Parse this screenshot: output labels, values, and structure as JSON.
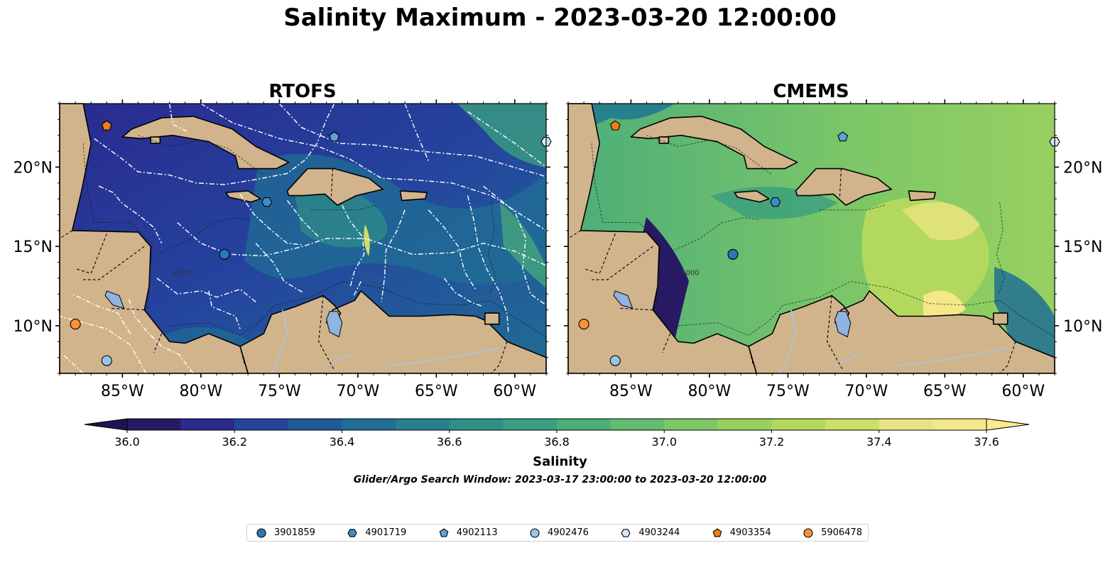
{
  "figure": {
    "title": "Salinity Maximum - 2023-03-20 12:00:00",
    "colorbar_label": "Salinity",
    "search_window": "Glider/Argo Search Window: 2023-03-17 23:00:00 to 2023-03-20 12:00:00"
  },
  "map_extent": {
    "lon": [
      -89,
      -58
    ],
    "lat": [
      7,
      24
    ]
  },
  "panels": [
    {
      "title": "RTOFS",
      "model": "rtofs",
      "eez_boundaries": true
    },
    {
      "title": "CMEMS",
      "model": "cmems",
      "eez_boundaries": false
    }
  ],
  "lon_ticks": [
    {
      "value": -85,
      "label": "85°W"
    },
    {
      "value": -80,
      "label": "80°W"
    },
    {
      "value": -75,
      "label": "75°W"
    },
    {
      "value": -70,
      "label": "70°W"
    },
    {
      "value": -65,
      "label": "65°W"
    },
    {
      "value": -60,
      "label": "60°W"
    }
  ],
  "lat_ticks": [
    {
      "value": 20,
      "label": "20°N"
    },
    {
      "value": 15,
      "label": "15°N"
    },
    {
      "value": 10,
      "label": "10°N"
    }
  ],
  "contour_label": "1000",
  "colorbar": {
    "min": 36.0,
    "max": 37.6,
    "step": 0.1,
    "extend": "both",
    "tick_labels": [
      "36.0",
      "36.2",
      "36.4",
      "36.6",
      "36.8",
      "37.0",
      "37.2",
      "37.4",
      "37.6"
    ],
    "colors": [
      "#271a63",
      "#2a2a8f",
      "#24449e",
      "#1f5b9b",
      "#206e94",
      "#287f8e",
      "#2f8f88",
      "#3a9e80",
      "#4cae79",
      "#62bc70",
      "#7dc767",
      "#98d060",
      "#b2d95d",
      "#cde066",
      "#e8e481",
      "#f4e888"
    ]
  },
  "colors": {
    "land": "#d1b48c",
    "lake": "#8fb4e2",
    "river": "#a8c5e6"
  },
  "floats": [
    {
      "id": "3901859",
      "marker": "circle",
      "color": "#2a76b8",
      "lon": -78.5,
      "lat": 14.5
    },
    {
      "id": "4901719",
      "marker": "hexagon",
      "color": "#3d8cc9",
      "lon": -75.8,
      "lat": 17.8
    },
    {
      "id": "4902113",
      "marker": "pentagon",
      "color": "#5fa3d8",
      "lon": -71.5,
      "lat": 21.9
    },
    {
      "id": "4902476",
      "marker": "circle",
      "color": "#97c5ea",
      "lon": -86.0,
      "lat": 7.8
    },
    {
      "id": "4903244",
      "marker": "hexagon",
      "color": "#d4e6f6",
      "lon": -58.0,
      "lat": 21.6
    },
    {
      "id": "4903354",
      "marker": "pentagon",
      "color": "#f07f15",
      "lon": -86.0,
      "lat": 22.6
    },
    {
      "id": "5906478",
      "marker": "circle",
      "color": "#f7923b",
      "lon": -88.0,
      "lat": 10.1
    }
  ]
}
